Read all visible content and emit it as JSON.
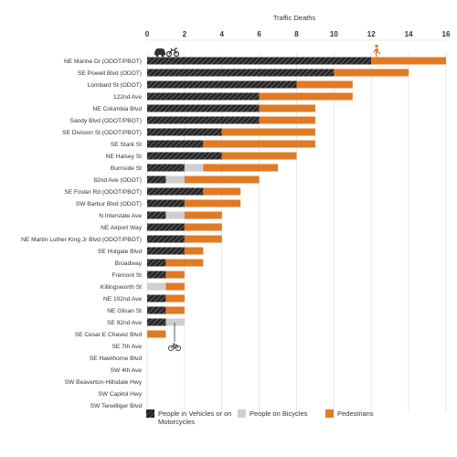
{
  "chart_data": {
    "type": "bar",
    "orientation": "horizontal",
    "stacked": true,
    "title": "Traffic Deaths",
    "xlim": [
      0,
      16
    ],
    "x_ticks": [
      "0",
      "2",
      "4",
      "6",
      "8",
      "10",
      "12",
      "14",
      "16"
    ],
    "grid": true,
    "legend_position": "bottom",
    "categories": [
      "NE Marine Dr (ODOT/PBOT)",
      "SE Powell Blvd (ODOT)",
      "Lombard St (ODOT)",
      "122nd Ave",
      "NE Columbia Blvd",
      "Sandy Blvd (ODOT/PBOT)",
      "SE Division St (ODOT/PBOT)",
      "SE Stark St",
      "NE Halsey St",
      "Burnside St",
      "82nd Ave (ODOT)",
      "SE Foster Rd (ODOT/PBOT)",
      "SW Barbur Blvd (ODOT)",
      "N Interstate Ave",
      "NE Airport Way",
      "NE Martin Luther King Jr Blvd (ODOT/PBOT)",
      "SE Holgate Blvd",
      "Broadway",
      "Fremont St",
      "Killingsworth St",
      "NE 102nd Ave",
      "NE Glisan St",
      "SE 92nd Ave",
      "SE Cesar E Chavez Blvd",
      "SE 7th Ave",
      "SE Hawthorne Blvd",
      "SW 4th Ave",
      "SW Beaverton-Hillsdale Hwy",
      "SW Capitol Hwy",
      "SW Terwilliger Blvd"
    ],
    "series": [
      {
        "name": "People in Vehicles or on Motorcycles",
        "color": "#2a2a2a",
        "values": [
          12,
          10,
          8,
          6,
          6,
          6,
          4,
          3,
          4,
          2,
          1,
          3,
          2,
          1,
          2,
          2,
          2,
          1,
          1,
          0,
          1,
          1,
          1,
          0,
          0,
          0,
          0,
          0,
          0,
          0
        ]
      },
      {
        "name": "People on Bicycles",
        "color": "#cfcfcf",
        "values": [
          0,
          0,
          0,
          0,
          0,
          0,
          0,
          0,
          0,
          1,
          1,
          0,
          0,
          1,
          0,
          0,
          0,
          0,
          0,
          1,
          0,
          0,
          1,
          0,
          0,
          0,
          0,
          0,
          0,
          0
        ]
      },
      {
        "name": "Pedestrians",
        "color": "#e07b24",
        "values": [
          4,
          4,
          3,
          5,
          3,
          3,
          5,
          6,
          4,
          4,
          4,
          2,
          3,
          2,
          2,
          2,
          1,
          2,
          1,
          1,
          1,
          1,
          0,
          1,
          0,
          0,
          0,
          0,
          0,
          0
        ]
      }
    ],
    "icons": [
      "car-icon",
      "motorcycle-icon",
      "pedestrian-icon",
      "bicycle-icon"
    ]
  },
  "legend": {
    "vehicles_label": "People in Vehicles or on Motorcycles",
    "bicycles_label": "People on Bicycles",
    "pedestrians_label": "Pedestrians"
  }
}
